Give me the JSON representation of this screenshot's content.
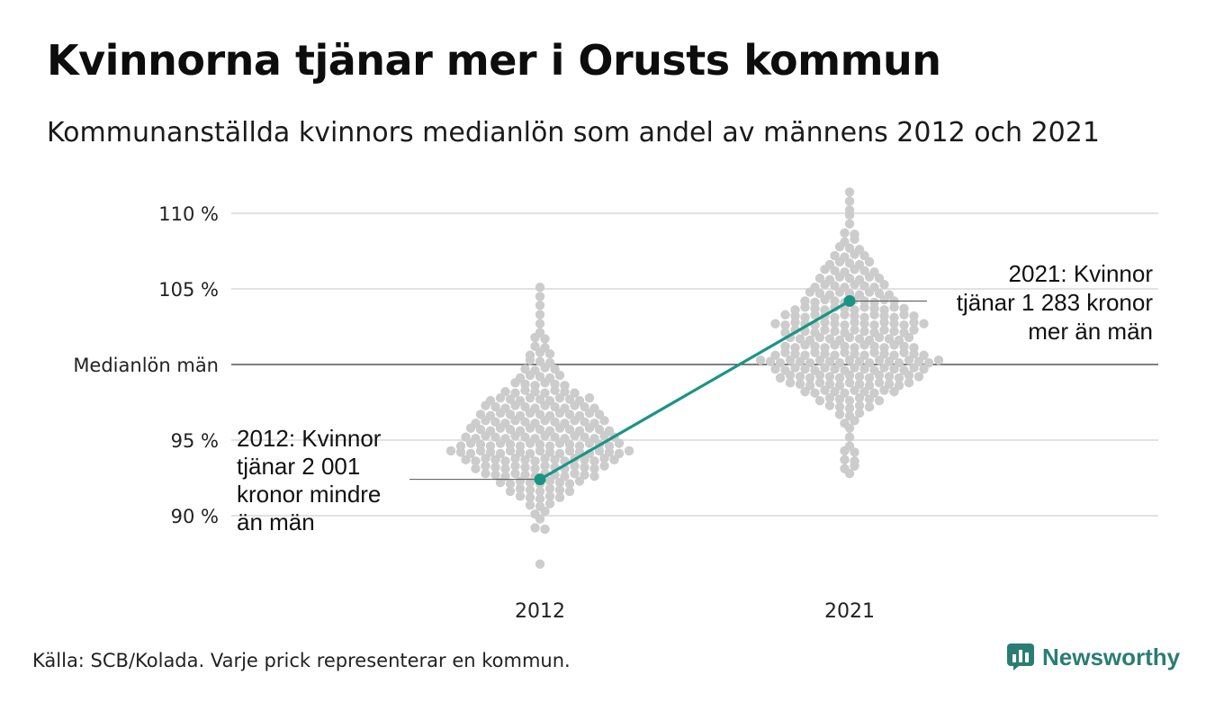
{
  "header": {
    "title": "Kvinnorna tjänar mer i Orusts kommun",
    "subtitle": "Kommunanställda kvinnors medianlön som andel av männens 2012 och 2021"
  },
  "footer": {
    "source": "Källa: SCB/Kolada. Varje prick representerar en kommun.",
    "brand": "Newsworthy"
  },
  "colors": {
    "dots": "#cccccc",
    "highlight": "#1a9485",
    "grid": "#e2e2e2",
    "baseline": "#333333",
    "brand": "#2a7d74"
  },
  "chart_data": {
    "type": "scatter",
    "categories": [
      "2012",
      "2021"
    ],
    "y_ticks": [
      {
        "value": 90,
        "label": "90 %"
      },
      {
        "value": 95,
        "label": "95 %"
      },
      {
        "value": 100,
        "label": "Medianlön män"
      },
      {
        "value": 105,
        "label": "105 %"
      },
      {
        "value": 110,
        "label": "110 %"
      }
    ],
    "ylim": [
      86.5,
      112
    ],
    "grid": true,
    "highlight": {
      "points": [
        {
          "x": "2012",
          "y": 92.4
        },
        {
          "x": "2021",
          "y": 104.2
        }
      ],
      "annotations": [
        {
          "x": "2012",
          "y": 92.4,
          "lines": [
            "2012: Kvinnor",
            "tjänar 2 001",
            "kronor mindre",
            "än män"
          ]
        },
        {
          "x": "2021",
          "y": 104.2,
          "lines": [
            "2021: Kvinnor",
            "tjänar 1 283 kronor",
            "mer än män"
          ]
        }
      ]
    },
    "distributions": [
      {
        "category": "2012",
        "bins": [
          {
            "y": 86.8,
            "count": 1
          },
          {
            "y": 89.2,
            "count": 2
          },
          {
            "y": 89.7,
            "count": 1
          },
          {
            "y": 90.2,
            "count": 2
          },
          {
            "y": 90.7,
            "count": 3
          },
          {
            "y": 91.2,
            "count": 5
          },
          {
            "y": 91.7,
            "count": 7
          },
          {
            "y": 92.2,
            "count": 9
          },
          {
            "y": 92.7,
            "count": 12
          },
          {
            "y": 93.2,
            "count": 14
          },
          {
            "y": 93.7,
            "count": 16
          },
          {
            "y": 94.2,
            "count": 19
          },
          {
            "y": 94.7,
            "count": 17
          },
          {
            "y": 95.2,
            "count": 16
          },
          {
            "y": 95.7,
            "count": 15
          },
          {
            "y": 96.2,
            "count": 14
          },
          {
            "y": 96.7,
            "count": 13
          },
          {
            "y": 97.2,
            "count": 12
          },
          {
            "y": 97.7,
            "count": 11
          },
          {
            "y": 98.2,
            "count": 8
          },
          {
            "y": 98.7,
            "count": 6
          },
          {
            "y": 99.2,
            "count": 5
          },
          {
            "y": 99.7,
            "count": 4
          },
          {
            "y": 100.2,
            "count": 3
          },
          {
            "y": 100.7,
            "count": 3
          },
          {
            "y": 101.2,
            "count": 2
          },
          {
            "y": 101.7,
            "count": 2
          },
          {
            "y": 102.2,
            "count": 1
          },
          {
            "y": 102.7,
            "count": 1
          },
          {
            "y": 103.3,
            "count": 1
          },
          {
            "y": 104.0,
            "count": 1
          },
          {
            "y": 104.5,
            "count": 1
          },
          {
            "y": 105.2,
            "count": 1
          }
        ]
      },
      {
        "category": "2021",
        "bins": [
          {
            "y": 92.7,
            "count": 1
          },
          {
            "y": 93.2,
            "count": 2
          },
          {
            "y": 93.7,
            "count": 2
          },
          {
            "y": 94.2,
            "count": 2
          },
          {
            "y": 94.7,
            "count": 1
          },
          {
            "y": 95.2,
            "count": 1
          },
          {
            "y": 95.7,
            "count": 1
          },
          {
            "y": 96.2,
            "count": 2
          },
          {
            "y": 96.7,
            "count": 3
          },
          {
            "y": 97.2,
            "count": 5
          },
          {
            "y": 97.7,
            "count": 7
          },
          {
            "y": 98.2,
            "count": 10
          },
          {
            "y": 98.7,
            "count": 13
          },
          {
            "y": 99.2,
            "count": 15
          },
          {
            "y": 99.7,
            "count": 16
          },
          {
            "y": 100.2,
            "count": 19
          },
          {
            "y": 100.7,
            "count": 16
          },
          {
            "y": 101.2,
            "count": 14
          },
          {
            "y": 101.7,
            "count": 13
          },
          {
            "y": 102.2,
            "count": 14
          },
          {
            "y": 102.7,
            "count": 16
          },
          {
            "y": 103.2,
            "count": 14
          },
          {
            "y": 103.7,
            "count": 12
          },
          {
            "y": 104.2,
            "count": 10
          },
          {
            "y": 104.7,
            "count": 9
          },
          {
            "y": 105.2,
            "count": 8
          },
          {
            "y": 105.7,
            "count": 7
          },
          {
            "y": 106.2,
            "count": 6
          },
          {
            "y": 106.7,
            "count": 5
          },
          {
            "y": 107.2,
            "count": 4
          },
          {
            "y": 107.7,
            "count": 3
          },
          {
            "y": 108.2,
            "count": 2
          },
          {
            "y": 108.7,
            "count": 2
          },
          {
            "y": 109.3,
            "count": 1
          },
          {
            "y": 109.8,
            "count": 1
          },
          {
            "y": 110.3,
            "count": 1
          },
          {
            "y": 110.8,
            "count": 1
          },
          {
            "y": 111.4,
            "count": 1
          }
        ]
      }
    ]
  }
}
